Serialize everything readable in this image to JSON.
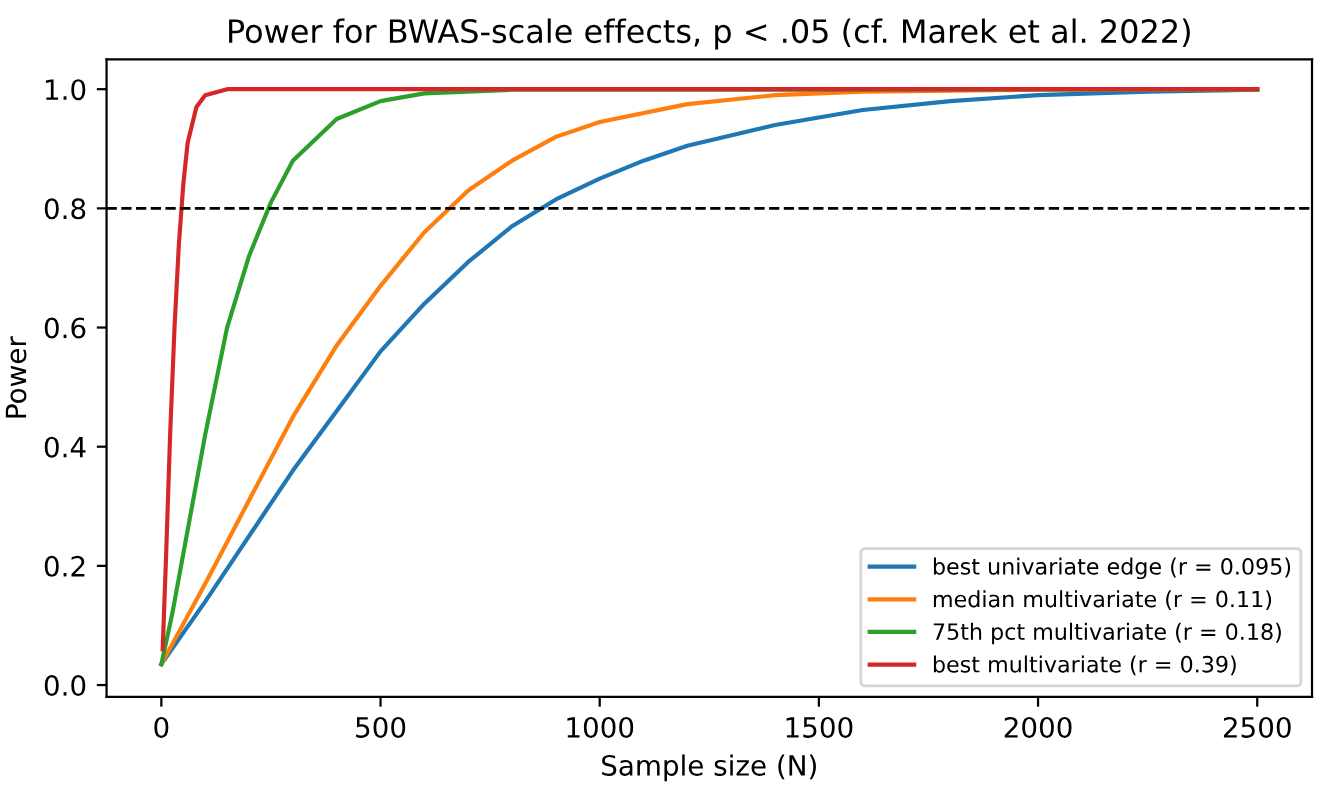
{
  "chart_data": {
    "type": "line",
    "title": "Power for BWAS-scale effects, p < .05 (cf. Marek et al. 2022)",
    "xlabel": "Sample size (N)",
    "ylabel": "Power",
    "series": [
      {
        "name": "best univariate edge (r = 0.095)",
        "color": "#1f77b4",
        "x": [
          0,
          100,
          200,
          300,
          400,
          500,
          600,
          700,
          800,
          900,
          1000,
          1100,
          1200,
          1400,
          1600,
          1800,
          2000,
          2250,
          2500
        ],
        "values": [
          0.035,
          0.14,
          0.25,
          0.36,
          0.46,
          0.56,
          0.64,
          0.71,
          0.77,
          0.815,
          0.85,
          0.88,
          0.905,
          0.94,
          0.965,
          0.98,
          0.99,
          0.996,
          0.999
        ]
      },
      {
        "name": "median multivariate (r = 0.11)",
        "color": "#ff7f0e",
        "x": [
          0,
          100,
          200,
          300,
          400,
          500,
          600,
          700,
          800,
          900,
          1000,
          1200,
          1400,
          1600,
          2000,
          2500
        ],
        "values": [
          0.035,
          0.17,
          0.31,
          0.45,
          0.57,
          0.67,
          0.76,
          0.83,
          0.88,
          0.92,
          0.945,
          0.975,
          0.99,
          0.996,
          0.999,
          1.0
        ]
      },
      {
        "name": "75th pct multivariate (r = 0.18)",
        "color": "#2ca02c",
        "x": [
          0,
          25,
          50,
          100,
          150,
          200,
          250,
          300,
          400,
          500,
          600,
          800,
          2500
        ],
        "values": [
          0.035,
          0.12,
          0.22,
          0.42,
          0.6,
          0.72,
          0.81,
          0.88,
          0.95,
          0.98,
          0.993,
          0.999,
          1.0
        ]
      },
      {
        "name": "best multivariate (r = 0.39)",
        "color": "#d62728",
        "x": [
          3,
          10,
          20,
          30,
          40,
          50,
          60,
          80,
          100,
          150,
          2500
        ],
        "values": [
          0.06,
          0.2,
          0.42,
          0.6,
          0.74,
          0.84,
          0.91,
          0.97,
          0.99,
          1.0,
          1.0
        ]
      }
    ],
    "xlim": [
      -125,
      2625
    ],
    "xticks": [
      0,
      500,
      1000,
      1500,
      2000,
      2500
    ],
    "ylim": [
      -0.02,
      1.05
    ],
    "yticks": [
      {
        "value": 0,
        "label": "0.0"
      },
      0.2,
      0.4,
      0.6,
      0.8,
      {
        "value": 1,
        "label": "1.0"
      }
    ],
    "ref_lines": [
      {
        "axis": "y",
        "value": 0.8,
        "color": "#000000",
        "line_style": "dashed"
      }
    ],
    "legend": "bottom right",
    "grid": false
  }
}
